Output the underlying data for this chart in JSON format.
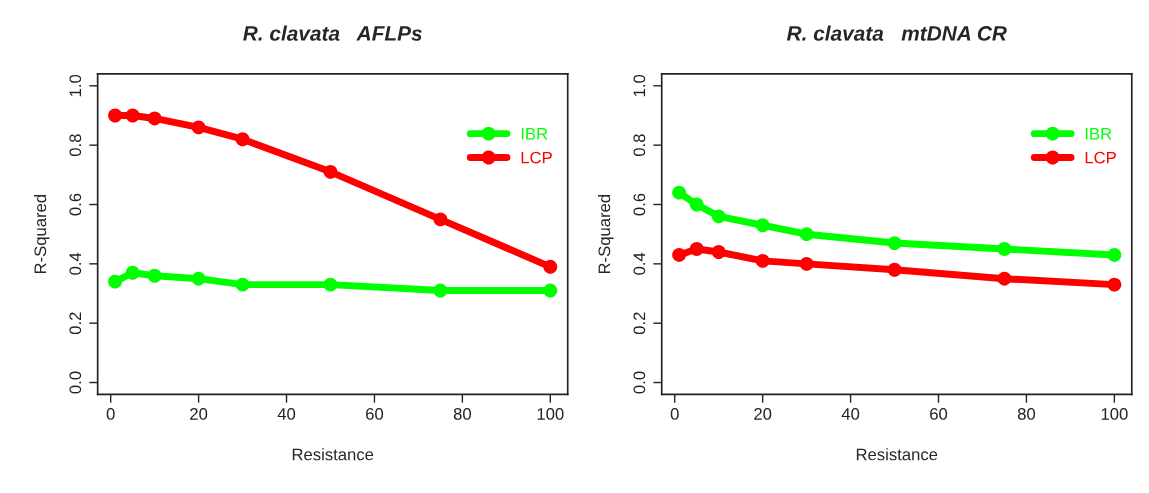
{
  "chart_data": [
    {
      "type": "line",
      "title": "R. clavata   AFLPs",
      "xlabel": "Resistance",
      "ylabel": "R-Squared",
      "x": [
        1,
        5,
        10,
        20,
        30,
        50,
        75,
        100
      ],
      "series": [
        {
          "name": "IBR",
          "color": "#00ff00",
          "values": [
            0.34,
            0.37,
            0.36,
            0.35,
            0.33,
            0.33,
            0.31,
            0.31
          ]
        },
        {
          "name": "LCP",
          "color": "#ff0000",
          "values": [
            0.9,
            0.9,
            0.89,
            0.86,
            0.82,
            0.71,
            0.55,
            0.39
          ]
        }
      ],
      "xlim": [
        -2.96,
        103.96
      ],
      "ylim": [
        -0.04,
        1.04
      ],
      "xticks": [
        0,
        20,
        40,
        60,
        80,
        100
      ],
      "yticks": [
        {
          "value": 0,
          "label": "0.0"
        },
        {
          "value": 0.2,
          "label": "0.2"
        },
        {
          "value": 0.4,
          "label": "0.4"
        },
        {
          "value": 0.6,
          "label": "0.6"
        },
        {
          "value": 0.8,
          "label": "0.8"
        },
        {
          "value": 1,
          "label": "1.0"
        }
      ],
      "grid": false,
      "legend": "top right",
      "marker": "circle",
      "line_style": "solid"
    },
    {
      "type": "line",
      "title": "R. clavata   mtDNA CR",
      "xlabel": "Resistance",
      "ylabel": "R-Squared",
      "x": [
        1,
        5,
        10,
        20,
        30,
        50,
        75,
        100
      ],
      "series": [
        {
          "name": "IBR",
          "color": "#00ff00",
          "values": [
            0.64,
            0.6,
            0.56,
            0.53,
            0.5,
            0.47,
            0.45,
            0.43
          ]
        },
        {
          "name": "LCP",
          "color": "#ff0000",
          "values": [
            0.43,
            0.45,
            0.44,
            0.41,
            0.4,
            0.38,
            0.35,
            0.33
          ]
        }
      ],
      "xlim": [
        -2.96,
        103.96
      ],
      "ylim": [
        -0.04,
        1.04
      ],
      "xticks": [
        0,
        20,
        40,
        60,
        80,
        100
      ],
      "yticks": [
        {
          "value": 0,
          "label": "0.0"
        },
        {
          "value": 0.2,
          "label": "0.2"
        },
        {
          "value": 0.4,
          "label": "0.4"
        },
        {
          "value": 0.6,
          "label": "0.6"
        },
        {
          "value": 0.8,
          "label": "0.8"
        },
        {
          "value": 1,
          "label": "1.0"
        }
      ],
      "grid": false,
      "legend": "top right",
      "marker": "circle",
      "line_style": "solid"
    }
  ]
}
